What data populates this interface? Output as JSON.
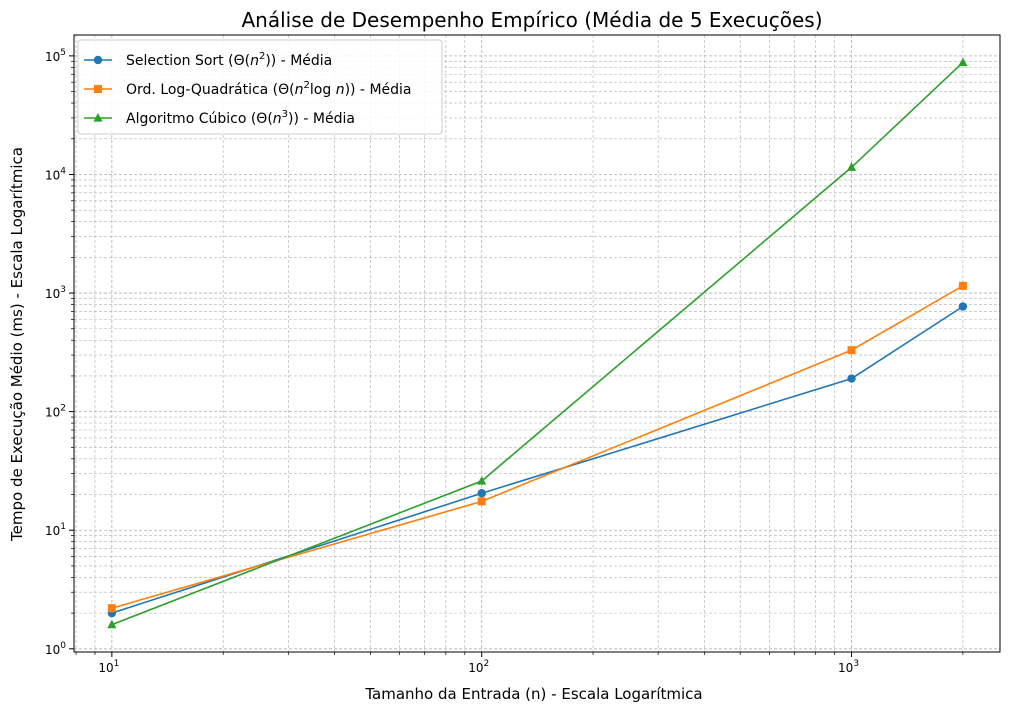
{
  "chart_data": {
    "type": "line",
    "title": "Análise de Desempenho Empírico (Média de 5 Execuções)",
    "xlabel": "Tamanho da Entrada (n) - Escala Logarítmica",
    "ylabel": "Tempo de Execução Médio (ms) - Escala Logarítmica",
    "xscale": "log",
    "yscale": "log",
    "xlim": [
      7.9,
      2520
    ],
    "ylim": [
      0.94,
      150000
    ],
    "grid": true,
    "legend_position": "top-left",
    "x_ticks": [
      {
        "base": "10",
        "exp": "1",
        "value": 10
      },
      {
        "base": "10",
        "exp": "2",
        "value": 100
      },
      {
        "base": "10",
        "exp": "3",
        "value": 1000
      }
    ],
    "y_ticks": [
      {
        "base": "10",
        "exp": "0",
        "value": 1
      },
      {
        "base": "10",
        "exp": "1",
        "value": 10
      },
      {
        "base": "10",
        "exp": "2",
        "value": 100
      },
      {
        "base": "10",
        "exp": "3",
        "value": 1000
      },
      {
        "base": "10",
        "exp": "4",
        "value": 10000
      },
      {
        "base": "10",
        "exp": "5",
        "value": 100000
      }
    ],
    "x": [
      10,
      100,
      1000,
      2000
    ],
    "series": [
      {
        "name": "Selection Sort (Θ(n²)) - Média",
        "legend_parts": [
          "Selection Sort (Θ(",
          "n",
          "2",
          ")) - Média"
        ],
        "color": "#1f77b4",
        "marker": "circle",
        "values": [
          2.0,
          20.5,
          190,
          770
        ]
      },
      {
        "name": "Ord. Log-Quadrática (Θ(n²log n)) - Média",
        "legend_parts": [
          "Ord. Log-Quadrática (Θ(",
          "n",
          "2",
          "log ",
          "n",
          ")) - Média"
        ],
        "color": "#ff7f0e",
        "marker": "square",
        "values": [
          2.2,
          17.5,
          330,
          1150
        ]
      },
      {
        "name": "Algoritmo Cúbico (Θ(n³)) - Média",
        "legend_parts": [
          "Algoritmo Cúbico (Θ(",
          "n",
          "3",
          ")) - Média"
        ],
        "color": "#2ca02c",
        "marker": "triangle",
        "values": [
          1.6,
          26,
          11500,
          88000
        ]
      }
    ]
  }
}
